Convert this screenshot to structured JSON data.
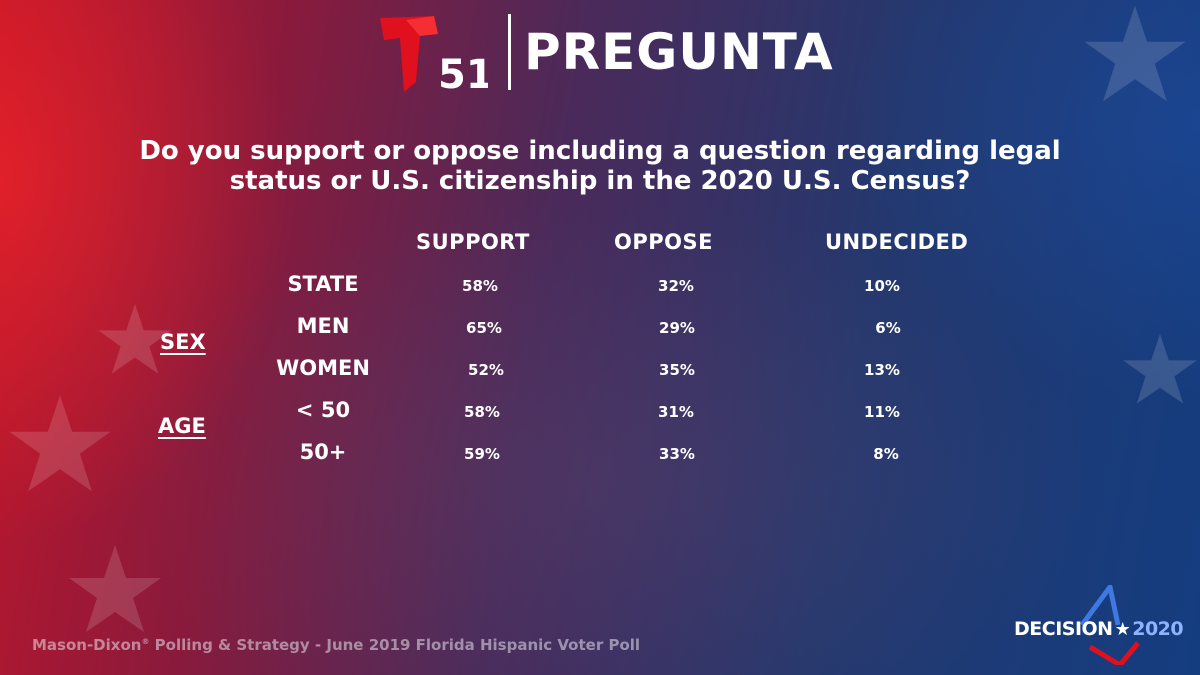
{
  "header": {
    "channel_number": "51",
    "brand_title": "PREGUNTA"
  },
  "question": {
    "line1": "Do you support or oppose including a question regarding legal",
    "line2": "status or U.S. citizenship in the 2020 U.S. Census?"
  },
  "table": {
    "columns": [
      "SUPPORT",
      "OPPOSE",
      "UNDECIDED"
    ],
    "groups": {
      "sex": "SEX",
      "age": "AGE"
    },
    "rows": [
      {
        "label": "STATE",
        "support": "58%",
        "oppose": "32%",
        "undecided": "10%"
      },
      {
        "label": "MEN",
        "support": "65%",
        "oppose": "29%",
        "undecided": "6%"
      },
      {
        "label": "WOMEN",
        "support": "52%",
        "oppose": "35%",
        "undecided": "13%"
      },
      {
        "label": "< 50",
        "support": "58%",
        "oppose": "31%",
        "undecided": "11%"
      },
      {
        "label": "50+",
        "support": "59%",
        "oppose": "33%",
        "undecided": "8%"
      }
    ]
  },
  "footer": {
    "source_prefix": "Mason-Dixon",
    "source_mark": "®",
    "source_suffix": " Polling & Strategy - June 2019 Florida Hispanic Voter Poll"
  },
  "badge": {
    "word": "DECISION",
    "star": "★",
    "year": "2020"
  },
  "colors": {
    "brand_red": "#e0101e",
    "accent_blue": "#3f78e0",
    "text": "#ffffff"
  }
}
